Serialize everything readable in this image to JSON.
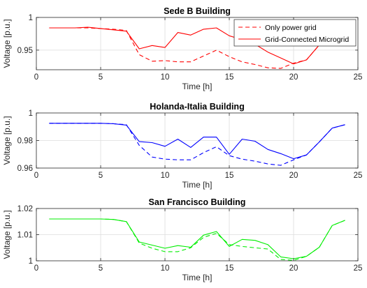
{
  "chart_data": [
    {
      "type": "line",
      "title": "Sede B Building",
      "xlabel": "Time [h]",
      "ylabel": "Voltage [p.u.]",
      "xlim": [
        0,
        25
      ],
      "ylim": [
        0.92,
        1.0
      ],
      "xticks": [
        0,
        5,
        10,
        15,
        20,
        25
      ],
      "yticks": [
        0.95,
        1.0
      ],
      "ytick_labels": [
        "0.95",
        "1"
      ],
      "grid": true,
      "legend_position": "top-right",
      "x": [
        1,
        2,
        3,
        4,
        5,
        6,
        7,
        8,
        9,
        10,
        11,
        12,
        13,
        14,
        15,
        16,
        17,
        18,
        19,
        20,
        21,
        22,
        23,
        24
      ],
      "series": [
        {
          "name": "Only power grid",
          "color": "#ff0000",
          "dash": "dashed",
          "values": [
            0.984,
            0.984,
            0.984,
            0.984,
            0.983,
            0.982,
            0.98,
            0.943,
            0.933,
            0.934,
            0.932,
            0.932,
            0.941,
            0.95,
            0.94,
            0.932,
            0.928,
            0.923,
            0.922,
            0.93,
            0.935,
            0.958,
            0.975,
            0.986
          ]
        },
        {
          "name": "Grid-Connected Microgrid",
          "color": "#ff0000",
          "dash": "solid",
          "values": [
            0.984,
            0.984,
            0.984,
            0.985,
            0.983,
            0.981,
            0.979,
            0.952,
            0.957,
            0.954,
            0.977,
            0.973,
            0.982,
            0.984,
            0.972,
            0.966,
            0.959,
            0.947,
            0.938,
            0.929,
            0.935,
            0.958,
            0.975,
            0.986
          ]
        }
      ]
    },
    {
      "type": "line",
      "title": "Holanda-Italia Building",
      "xlabel": "Time [h]",
      "ylabel": "Voltage [p.u.]",
      "xlim": [
        0,
        25
      ],
      "ylim": [
        0.96,
        1.0
      ],
      "xticks": [
        0,
        5,
        10,
        15,
        20,
        25
      ],
      "yticks": [
        0.96,
        0.98,
        1.0
      ],
      "ytick_labels": [
        "0.96",
        "0.98",
        "1"
      ],
      "grid": true,
      "x": [
        1,
        2,
        3,
        4,
        5,
        6,
        7,
        8,
        9,
        10,
        11,
        12,
        13,
        14,
        15,
        16,
        17,
        18,
        19,
        20,
        21,
        22,
        23,
        24
      ],
      "series": [
        {
          "color": "#0000ff",
          "dash": "dashed",
          "values": [
            0.9925,
            0.9925,
            0.9925,
            0.9925,
            0.9925,
            0.9922,
            0.9915,
            0.9765,
            0.968,
            0.9665,
            0.966,
            0.966,
            0.9712,
            0.9755,
            0.969,
            0.9665,
            0.965,
            0.963,
            0.962,
            0.966,
            0.9695,
            0.979,
            0.989,
            0.9915
          ]
        },
        {
          "color": "#0000ff",
          "dash": "solid",
          "values": [
            0.9925,
            0.9925,
            0.9925,
            0.9925,
            0.9925,
            0.9922,
            0.9912,
            0.9792,
            0.9785,
            0.9758,
            0.981,
            0.975,
            0.9825,
            0.9825,
            0.97,
            0.981,
            0.9795,
            0.9735,
            0.9705,
            0.9668,
            0.9695,
            0.979,
            0.989,
            0.9915
          ]
        }
      ]
    },
    {
      "type": "line",
      "title": "San Francisco Building",
      "xlabel": "Time [h]",
      "ylabel": "Voltage [p.u.]",
      "xlim": [
        0,
        25
      ],
      "ylim": [
        1.0,
        1.02
      ],
      "xticks": [
        0,
        5,
        10,
        15,
        20,
        25
      ],
      "yticks": [
        1.0,
        1.01,
        1.02
      ],
      "ytick_labels": [
        "1",
        "1.01",
        "1.02"
      ],
      "grid": true,
      "x": [
        1,
        2,
        3,
        4,
        5,
        6,
        7,
        8,
        9,
        10,
        11,
        12,
        13,
        14,
        15,
        16,
        17,
        18,
        19,
        20,
        21,
        22,
        23,
        24
      ],
      "series": [
        {
          "color": "#00ee00",
          "dash": "dashed",
          "values": [
            1.016,
            1.016,
            1.016,
            1.016,
            1.016,
            1.0158,
            1.015,
            1.0068,
            1.0048,
            1.0035,
            1.0035,
            1.005,
            1.009,
            1.0105,
            1.0062,
            1.0055,
            1.005,
            1.0045,
            1.0005,
            1.0002,
            1.0017,
            1.0052,
            1.0135,
            1.0155
          ]
        },
        {
          "color": "#00ee00",
          "dash": "solid",
          "values": [
            1.016,
            1.016,
            1.016,
            1.016,
            1.016,
            1.0158,
            1.015,
            1.0072,
            1.006,
            1.0048,
            1.0058,
            1.0052,
            1.0098,
            1.0112,
            1.0055,
            1.0082,
            1.0078,
            1.0062,
            1.0015,
            1.0008,
            1.0017,
            1.0052,
            1.0135,
            1.0155
          ]
        }
      ]
    }
  ]
}
